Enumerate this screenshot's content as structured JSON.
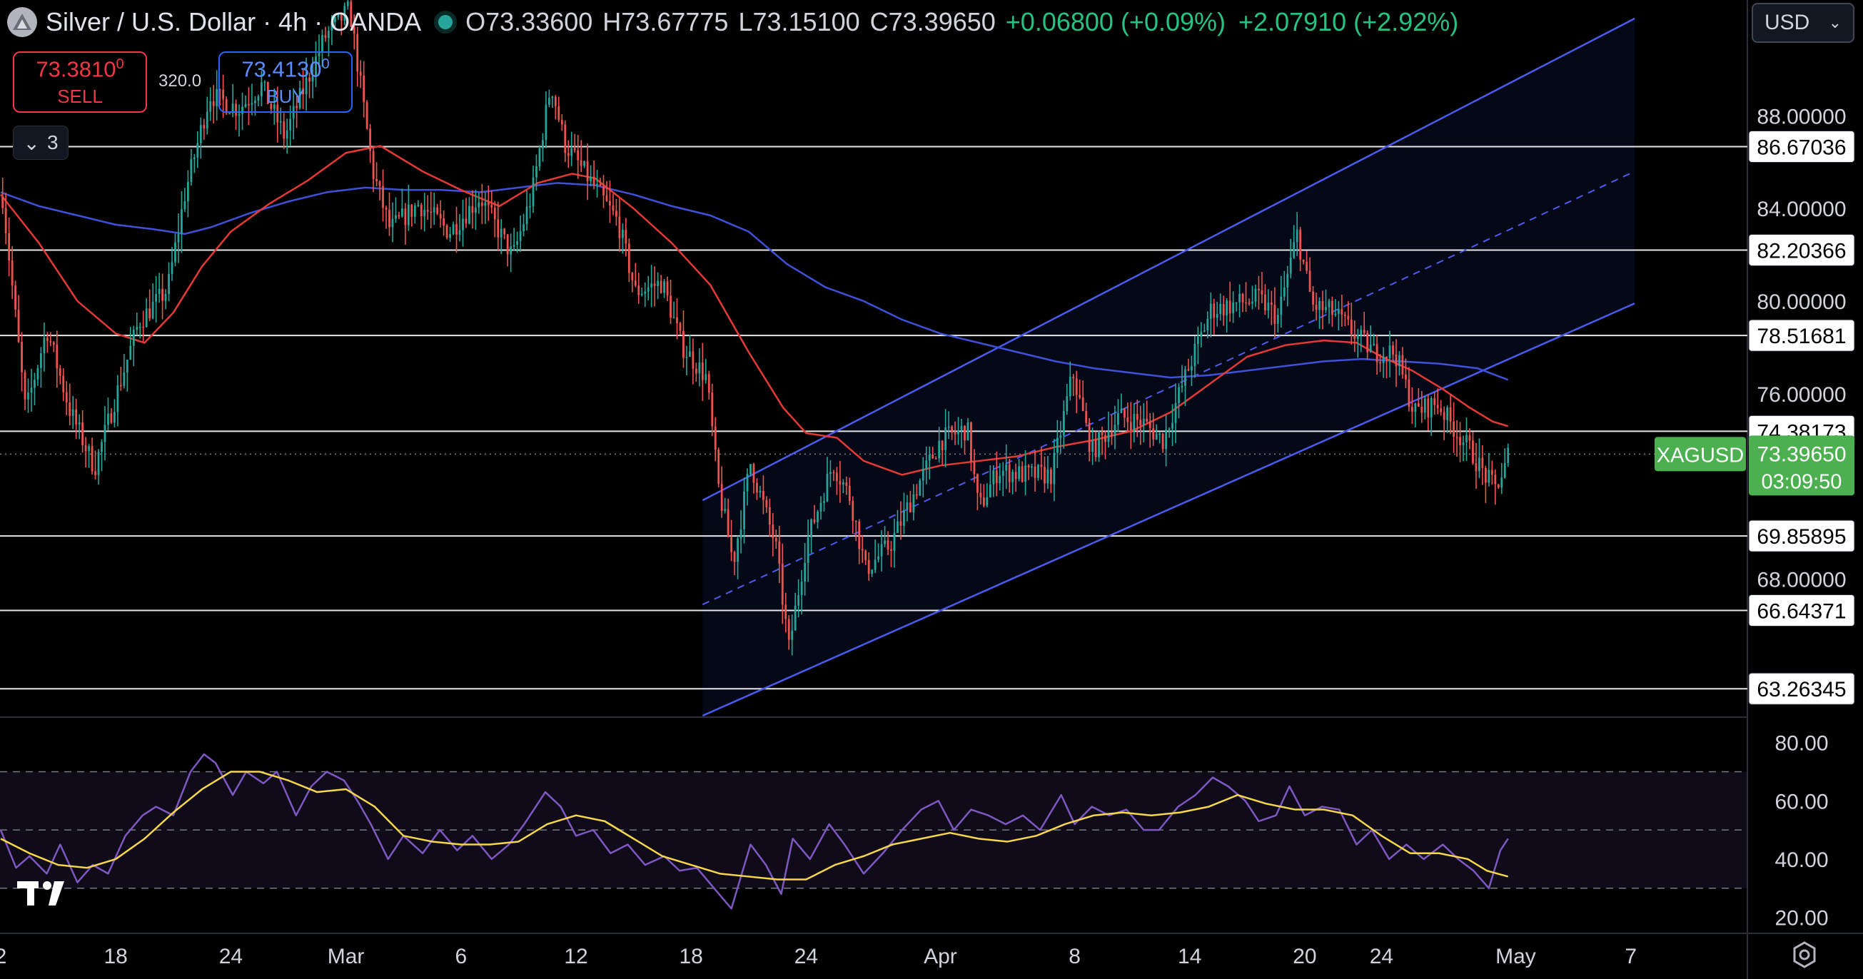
{
  "header": {
    "symbol_title": "Silver / U.S. Dollar · 4h · OANDA",
    "open": "O73.33600",
    "high": "H73.67775",
    "low": "L73.15100",
    "close": "C73.39650",
    "change": "+0.06800 (+0.09%)",
    "change_period": "+2.07910 (+2.92%)"
  },
  "trade": {
    "sell_price": "73.3810",
    "sell_sup": "0",
    "sell_label": "SELL",
    "spread": "320.0",
    "buy_price": "73.4130",
    "buy_sup": "0",
    "buy_label": "BUY"
  },
  "indicator_count": "3",
  "currency": "USD",
  "colors": {
    "bull": "#26a69a",
    "bear": "#ef5350",
    "ma_fast": "#e53935",
    "ma_slow": "#3f51d9",
    "channel": "#4a5cf0",
    "rsi": "#7e57c2",
    "rsi_ma": "#f7d64a",
    "price_tag": "#4caf50"
  },
  "chart_data": {
    "type": "candlestick",
    "symbol_tag": "XAGUSD",
    "last_price": "73.39650",
    "countdown": "03:09:50",
    "ylim": [
      62.1,
      93
    ],
    "price_ticks": [
      {
        "label": "88.00000",
        "value": 88
      },
      {
        "label": "84.00000",
        "value": 84
      },
      {
        "label": "80.00000",
        "value": 80
      },
      {
        "label": "76.00000",
        "value": 76
      },
      {
        "label": "68.00000",
        "value": 68
      }
    ],
    "horizontal_levels": [
      {
        "label": "86.67036",
        "value": 86.67036
      },
      {
        "label": "82.20366",
        "value": 82.20366
      },
      {
        "label": "78.51681",
        "value": 78.51681
      },
      {
        "label": "74.38173",
        "value": 74.38173
      },
      {
        "label": "69.85895",
        "value": 69.85895
      },
      {
        "label": "66.64371",
        "value": 66.64371
      },
      {
        "label": "63.26345",
        "value": 63.26345
      }
    ],
    "x_ticks": [
      {
        "label": "2",
        "day": 12
      },
      {
        "label": "18",
        "day": 18
      },
      {
        "label": "24",
        "day": 24
      },
      {
        "label": "Mar",
        "day": 30
      },
      {
        "label": "6",
        "day": 36
      },
      {
        "label": "12",
        "day": 42
      },
      {
        "label": "18",
        "day": 48
      },
      {
        "label": "24",
        "day": 54
      },
      {
        "label": "Apr",
        "day": 61
      },
      {
        "label": "8",
        "day": 68
      },
      {
        "label": "14",
        "day": 74
      },
      {
        "label": "20",
        "day": 80
      },
      {
        "label": "24",
        "day": 84
      },
      {
        "label": "May",
        "day": 91
      },
      {
        "label": "7",
        "day": 97
      }
    ],
    "close_path": [
      [
        12.1,
        84.5
      ],
      [
        13.3,
        75.2
      ],
      [
        14.4,
        78.8
      ],
      [
        15.6,
        75.3
      ],
      [
        16.9,
        72.8
      ],
      [
        17.9,
        75.6
      ],
      [
        19.2,
        79.1
      ],
      [
        20.7,
        80.5
      ],
      [
        21.6,
        84.6
      ],
      [
        22.9,
        88.9
      ],
      [
        24.4,
        88.3
      ],
      [
        25.6,
        89.3
      ],
      [
        26.8,
        87.1
      ],
      [
        28.9,
        91.4
      ],
      [
        30.2,
        92.6
      ],
      [
        31.4,
        85.6
      ],
      [
        32.3,
        83.1
      ],
      [
        33.8,
        84.2
      ],
      [
        35.4,
        83.0
      ],
      [
        37.0,
        84.5
      ],
      [
        38.7,
        81.9
      ],
      [
        39.7,
        84.6
      ],
      [
        40.7,
        89.4
      ],
      [
        41.4,
        86.8
      ],
      [
        42.9,
        85.0
      ],
      [
        44.2,
        83.4
      ],
      [
        45.1,
        80.4
      ],
      [
        46.5,
        80.8
      ],
      [
        47.5,
        78.1
      ],
      [
        48.8,
        76.7
      ],
      [
        49.4,
        72.1
      ],
      [
        50.2,
        68.7
      ],
      [
        51.1,
        73.0
      ],
      [
        52.4,
        69.5
      ],
      [
        53.1,
        65.0
      ],
      [
        54.0,
        69.5
      ],
      [
        55.4,
        73.0
      ],
      [
        56.3,
        71.5
      ],
      [
        57.1,
        68.4
      ],
      [
        58.4,
        69.5
      ],
      [
        59.8,
        72.0
      ],
      [
        61.0,
        74.0
      ],
      [
        62.4,
        74.5
      ],
      [
        63.0,
        71.0
      ],
      [
        64.0,
        72.7
      ],
      [
        65.4,
        72.5
      ],
      [
        66.8,
        72.5
      ],
      [
        67.9,
        76.9
      ],
      [
        68.9,
        73.5
      ],
      [
        70.3,
        75.0
      ],
      [
        71.5,
        74.8
      ],
      [
        72.6,
        74.0
      ],
      [
        73.8,
        76.8
      ],
      [
        75.1,
        79.6
      ],
      [
        76.5,
        79.9
      ],
      [
        77.6,
        80.1
      ],
      [
        78.6,
        79.3
      ],
      [
        79.6,
        82.9
      ],
      [
        80.4,
        79.8
      ],
      [
        81.5,
        79.5
      ],
      [
        82.7,
        78.5
      ],
      [
        83.6,
        77.8
      ],
      [
        84.7,
        77.8
      ],
      [
        85.7,
        75.2
      ],
      [
        86.9,
        75.6
      ],
      [
        87.8,
        74.5
      ],
      [
        88.6,
        73.6
      ],
      [
        89.3,
        72.6
      ],
      [
        89.9,
        71.9
      ],
      [
        90.4,
        72.7
      ],
      [
        90.6,
        73.4
      ]
    ],
    "candles_per_day": 6,
    "ma_fast": [
      [
        12.0,
        84.6
      ],
      [
        14.0,
        82.5
      ],
      [
        16.0,
        80.0
      ],
      [
        18.0,
        78.6
      ],
      [
        19.5,
        78.2
      ],
      [
        21.0,
        79.5
      ],
      [
        22.5,
        81.5
      ],
      [
        24.0,
        83.0
      ],
      [
        26.0,
        84.2
      ],
      [
        28.0,
        85.2
      ],
      [
        30.0,
        86.4
      ],
      [
        31.8,
        86.7
      ],
      [
        34.0,
        85.6
      ],
      [
        36.0,
        84.8
      ],
      [
        38.0,
        84.1
      ],
      [
        40.0,
        85.1
      ],
      [
        41.8,
        85.5
      ],
      [
        43.0,
        85.3
      ],
      [
        45.0,
        84.0
      ],
      [
        47.0,
        82.5
      ],
      [
        49.0,
        80.7
      ],
      [
        51.0,
        77.8
      ],
      [
        52.8,
        75.4
      ],
      [
        54.0,
        74.3
      ],
      [
        55.6,
        74.1
      ],
      [
        57.0,
        73.1
      ],
      [
        59.0,
        72.5
      ],
      [
        61.0,
        72.9
      ],
      [
        63.0,
        73.1
      ],
      [
        65.0,
        73.3
      ],
      [
        67.0,
        73.7
      ],
      [
        69.0,
        74.0
      ],
      [
        71.0,
        74.4
      ],
      [
        73.0,
        75.2
      ],
      [
        75.0,
        76.4
      ],
      [
        77.0,
        77.6
      ],
      [
        79.0,
        78.1
      ],
      [
        81.0,
        78.3
      ],
      [
        82.7,
        78.2
      ],
      [
        84.0,
        77.6
      ],
      [
        85.6,
        77.0
      ],
      [
        87.2,
        76.2
      ],
      [
        88.6,
        75.4
      ],
      [
        89.8,
        74.8
      ],
      [
        90.6,
        74.6
      ]
    ],
    "ma_slow": [
      [
        12.0,
        84.7
      ],
      [
        14.0,
        84.1
      ],
      [
        16.0,
        83.7
      ],
      [
        18.0,
        83.3
      ],
      [
        20.0,
        83.1
      ],
      [
        21.6,
        82.9
      ],
      [
        23.0,
        83.2
      ],
      [
        25.0,
        83.8
      ],
      [
        27.0,
        84.3
      ],
      [
        29.0,
        84.7
      ],
      [
        31.0,
        84.9
      ],
      [
        33.0,
        84.8
      ],
      [
        35.0,
        84.8
      ],
      [
        37.0,
        84.7
      ],
      [
        39.0,
        84.9
      ],
      [
        41.0,
        85.1
      ],
      [
        43.0,
        85.0
      ],
      [
        45.0,
        84.6
      ],
      [
        47.0,
        84.1
      ],
      [
        49.0,
        83.7
      ],
      [
        51.0,
        83.0
      ],
      [
        53.0,
        81.6
      ],
      [
        55.0,
        80.6
      ],
      [
        57.0,
        80.0
      ],
      [
        59.0,
        79.2
      ],
      [
        61.0,
        78.6
      ],
      [
        63.0,
        78.2
      ],
      [
        65.0,
        77.8
      ],
      [
        67.0,
        77.4
      ],
      [
        69.0,
        77.1
      ],
      [
        71.0,
        76.9
      ],
      [
        73.0,
        76.7
      ],
      [
        75.0,
        76.8
      ],
      [
        77.0,
        77.0
      ],
      [
        79.0,
        77.2
      ],
      [
        81.0,
        77.4
      ],
      [
        83.0,
        77.5
      ],
      [
        85.0,
        77.4
      ],
      [
        87.0,
        77.3
      ],
      [
        89.0,
        77.1
      ],
      [
        90.6,
        76.6
      ]
    ],
    "channel": {
      "x_start": 48.6,
      "x_end": 97.2,
      "upper": [
        71.4,
        92.2
      ],
      "middle": [
        66.9,
        85.6
      ],
      "lower": [
        62.1,
        79.9
      ]
    },
    "rsi": {
      "ylim": [
        15,
        88
      ],
      "ticks": [
        {
          "label": "80.00",
          "value": 80
        },
        {
          "label": "60.00",
          "value": 60
        },
        {
          "label": "40.00",
          "value": 40
        },
        {
          "label": "20.00",
          "value": 20
        }
      ],
      "band": [
        30,
        70
      ],
      "mid": 50,
      "path": [
        [
          12.0,
          50
        ],
        [
          12.8,
          37
        ],
        [
          13.5,
          41
        ],
        [
          14.4,
          35
        ],
        [
          15.1,
          45
        ],
        [
          16.0,
          32
        ],
        [
          16.8,
          38
        ],
        [
          17.6,
          35
        ],
        [
          18.5,
          48
        ],
        [
          19.4,
          55
        ],
        [
          20.1,
          58
        ],
        [
          21.0,
          55
        ],
        [
          21.9,
          70
        ],
        [
          22.6,
          76
        ],
        [
          23.2,
          73
        ],
        [
          24.1,
          62
        ],
        [
          24.8,
          70
        ],
        [
          25.7,
          66
        ],
        [
          26.4,
          70
        ],
        [
          27.4,
          55
        ],
        [
          28.2,
          65
        ],
        [
          29.0,
          70
        ],
        [
          29.9,
          67
        ],
        [
          30.6,
          60
        ],
        [
          31.3,
          52
        ],
        [
          32.2,
          40
        ],
        [
          33.0,
          48
        ],
        [
          34.0,
          42
        ],
        [
          34.9,
          50
        ],
        [
          35.8,
          43
        ],
        [
          36.6,
          48
        ],
        [
          37.6,
          40
        ],
        [
          38.5,
          45
        ],
        [
          39.3,
          52
        ],
        [
          40.4,
          63
        ],
        [
          41.2,
          58
        ],
        [
          42.0,
          48
        ],
        [
          42.9,
          50
        ],
        [
          43.8,
          42
        ],
        [
          44.7,
          45
        ],
        [
          45.6,
          38
        ],
        [
          46.6,
          41
        ],
        [
          47.4,
          36
        ],
        [
          48.3,
          37
        ],
        [
          49.2,
          30
        ],
        [
          50.1,
          23
        ],
        [
          51.1,
          45
        ],
        [
          51.9,
          38
        ],
        [
          52.7,
          28
        ],
        [
          53.3,
          47
        ],
        [
          54.2,
          40
        ],
        [
          55.2,
          52
        ],
        [
          56.0,
          45
        ],
        [
          57.0,
          35
        ],
        [
          58.0,
          42
        ],
        [
          59.0,
          50
        ],
        [
          60.0,
          57
        ],
        [
          60.9,
          60
        ],
        [
          61.7,
          50
        ],
        [
          62.6,
          57
        ],
        [
          63.5,
          55
        ],
        [
          64.4,
          52
        ],
        [
          65.3,
          55
        ],
        [
          66.2,
          50
        ],
        [
          67.3,
          62
        ],
        [
          68.0,
          52
        ],
        [
          68.9,
          58
        ],
        [
          69.8,
          55
        ],
        [
          70.7,
          57
        ],
        [
          71.6,
          50
        ],
        [
          72.4,
          50
        ],
        [
          73.4,
          58
        ],
        [
          74.3,
          62
        ],
        [
          75.2,
          68
        ],
        [
          76.0,
          65
        ],
        [
          76.9,
          60
        ],
        [
          77.6,
          53
        ],
        [
          78.5,
          55
        ],
        [
          79.2,
          65
        ],
        [
          80.0,
          55
        ],
        [
          80.9,
          58
        ],
        [
          81.8,
          57
        ],
        [
          82.7,
          45
        ],
        [
          83.5,
          50
        ],
        [
          84.4,
          40
        ],
        [
          85.3,
          45
        ],
        [
          86.2,
          40
        ],
        [
          87.2,
          45
        ],
        [
          88.0,
          40
        ],
        [
          88.8,
          36
        ],
        [
          89.6,
          30
        ],
        [
          90.2,
          43
        ],
        [
          90.6,
          47
        ]
      ],
      "ma": [
        [
          12.0,
          47
        ],
        [
          13.5,
          42
        ],
        [
          15.0,
          38
        ],
        [
          16.5,
          37
        ],
        [
          18.0,
          40
        ],
        [
          19.5,
          47
        ],
        [
          21.0,
          56
        ],
        [
          22.5,
          64
        ],
        [
          24.0,
          70
        ],
        [
          25.5,
          70
        ],
        [
          27.0,
          67
        ],
        [
          28.5,
          63
        ],
        [
          30.0,
          64
        ],
        [
          31.5,
          58
        ],
        [
          33.0,
          48
        ],
        [
          34.5,
          46
        ],
        [
          36.0,
          45
        ],
        [
          37.5,
          45
        ],
        [
          39.0,
          46
        ],
        [
          40.5,
          52
        ],
        [
          42.0,
          55
        ],
        [
          43.5,
          53
        ],
        [
          45.0,
          47
        ],
        [
          46.5,
          41
        ],
        [
          48.0,
          38
        ],
        [
          49.5,
          35
        ],
        [
          51.0,
          34
        ],
        [
          52.5,
          33
        ],
        [
          54.0,
          33
        ],
        [
          55.5,
          38
        ],
        [
          57.0,
          41
        ],
        [
          58.5,
          45
        ],
        [
          60.0,
          47
        ],
        [
          61.5,
          49
        ],
        [
          63.0,
          47
        ],
        [
          64.5,
          46
        ],
        [
          66.0,
          48
        ],
        [
          67.5,
          52
        ],
        [
          69.0,
          55
        ],
        [
          70.5,
          56
        ],
        [
          72.0,
          55
        ],
        [
          73.5,
          56
        ],
        [
          75.0,
          58
        ],
        [
          76.5,
          62
        ],
        [
          78.0,
          59
        ],
        [
          79.5,
          57
        ],
        [
          81.0,
          57
        ],
        [
          82.5,
          55
        ],
        [
          84.0,
          48
        ],
        [
          85.5,
          42
        ],
        [
          87.0,
          42
        ],
        [
          88.5,
          40
        ],
        [
          89.5,
          36
        ],
        [
          90.6,
          34
        ]
      ]
    }
  }
}
